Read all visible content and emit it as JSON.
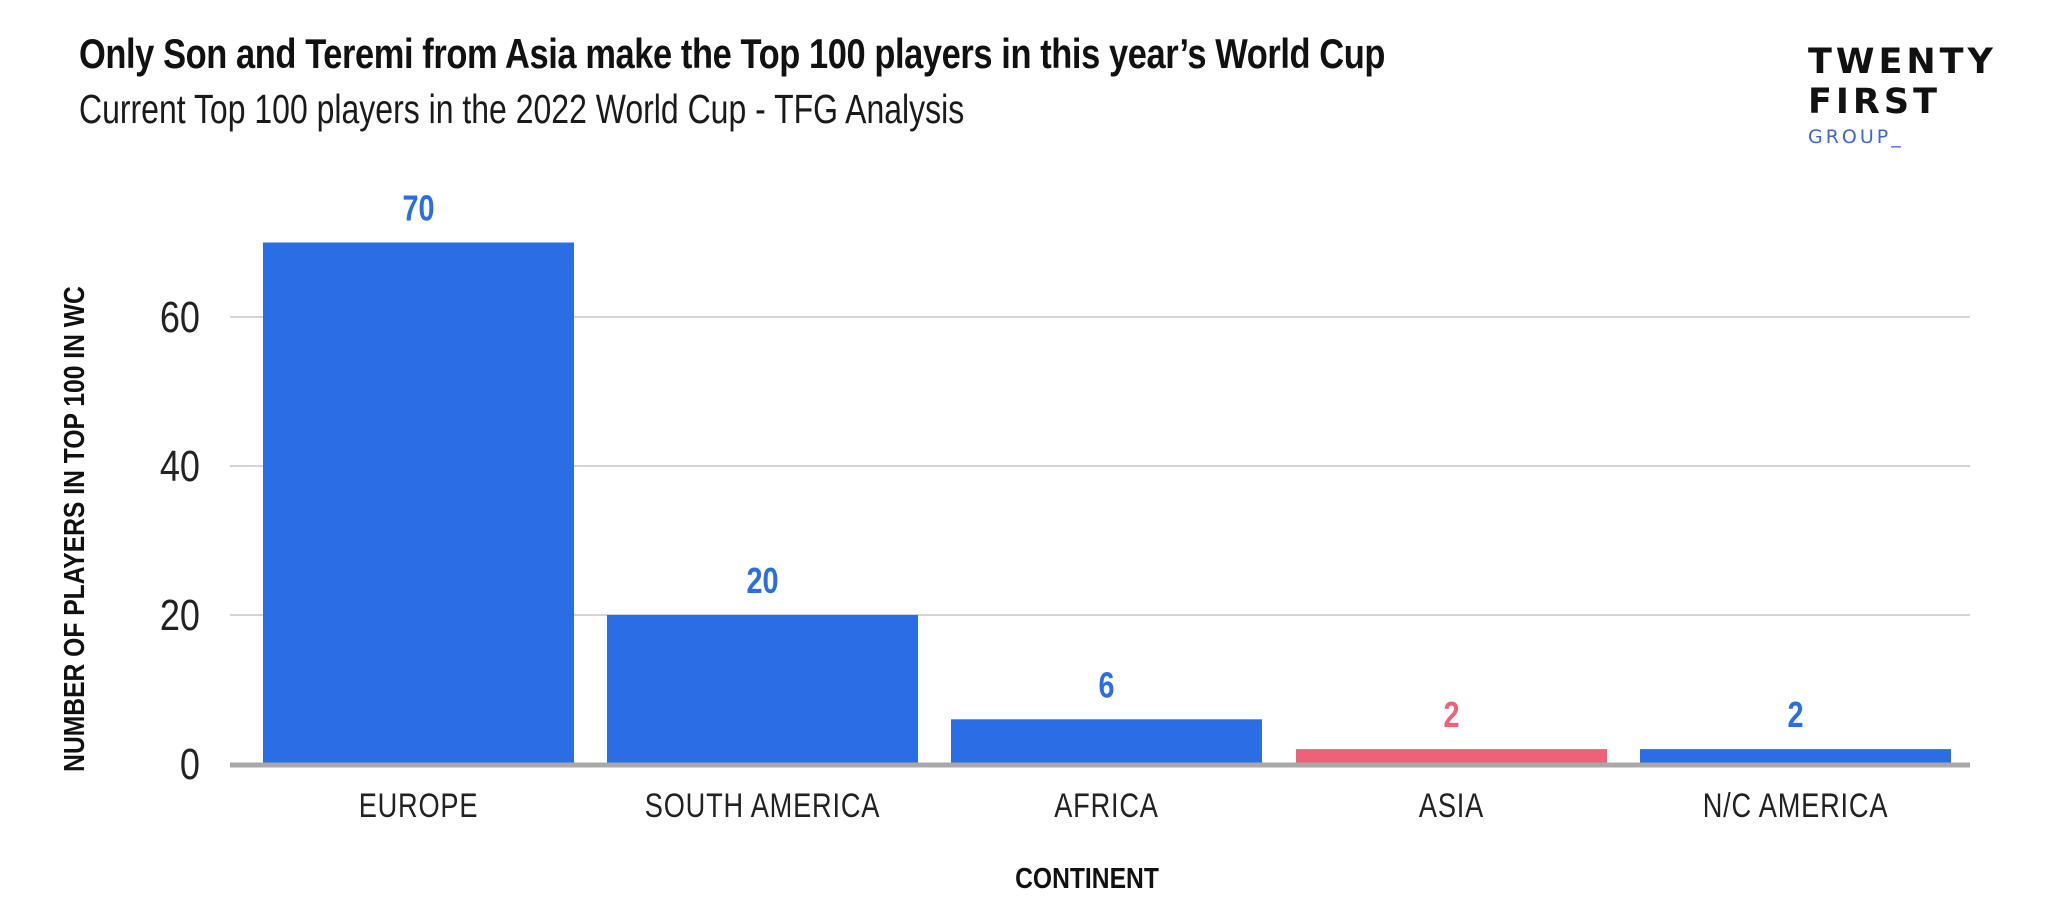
{
  "header": {
    "title": "Only Son and Teremi from Asia make the Top 100 players in this year’s World Cup",
    "subtitle": "Current Top 100 players in the 2022 World Cup - TFG Analysis"
  },
  "logo": {
    "line1": "TWENTY",
    "line2": "FIRST",
    "line3": "GROUP_"
  },
  "colors": {
    "bar_default": "#2a6de4",
    "bar_highlight": "#ef6178",
    "gridline": "#d4d4d4",
    "baseline": "#a8a8a8"
  },
  "chart_data": {
    "type": "bar",
    "title": "Only Son and Teremi from Asia make the Top 100 players in this year’s World Cup",
    "subtitle": "Current Top 100 players in the 2022 World Cup - TFG Analysis",
    "xlabel": "CONTINENT",
    "ylabel": "NUMBER OF PLAYERS IN TOP 100 IN WC",
    "categories": [
      "EUROPE",
      "SOUTH AMERICA",
      "AFRICA",
      "ASIA",
      "N/C AMERICA"
    ],
    "values": [
      70,
      20,
      6,
      2,
      2
    ],
    "highlight": [
      "ASIA"
    ],
    "ylim": [
      0,
      70
    ],
    "yticks": [
      0,
      20,
      40,
      60
    ],
    "grid": true,
    "legend": "none",
    "data_labels": true
  }
}
